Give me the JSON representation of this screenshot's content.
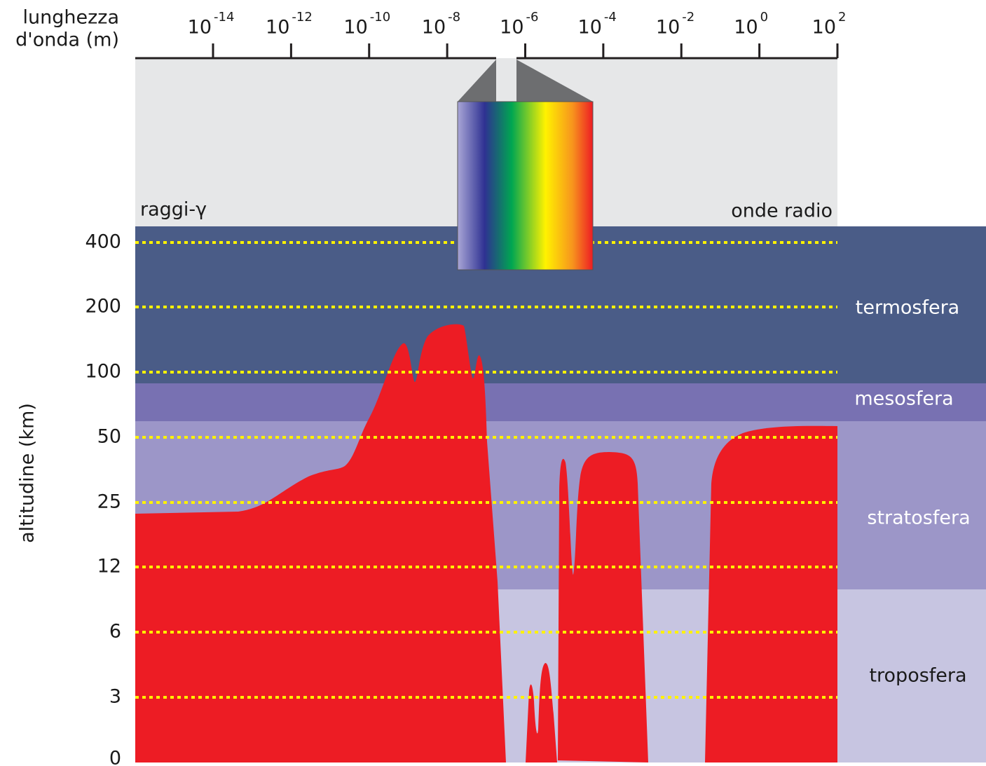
{
  "axis_title_x": [
    "lunghezza",
    "d'onda (m)"
  ],
  "axis_title_y": "altitudine (km)",
  "x_ticks": [
    {
      "base": "10",
      "exp": "-14"
    },
    {
      "base": "10",
      "exp": "-12"
    },
    {
      "base": "10",
      "exp": "-10"
    },
    {
      "base": "10",
      "exp": "-8"
    },
    {
      "base": "10",
      "exp": "-6"
    },
    {
      "base": "10",
      "exp": "-4"
    },
    {
      "base": "10",
      "exp": "-2"
    },
    {
      "base": "10",
      "exp": "0"
    },
    {
      "base": "10",
      "exp": "2"
    }
  ],
  "y_ticks": [
    "400",
    "200",
    "100",
    "50",
    "25",
    "12",
    "6",
    "3",
    "0"
  ],
  "ends": {
    "left": "raggi-γ",
    "right": "onde radio"
  },
  "layers": [
    "termosfera",
    "mesosfera",
    "stratosfera",
    "troposfera"
  ]
}
